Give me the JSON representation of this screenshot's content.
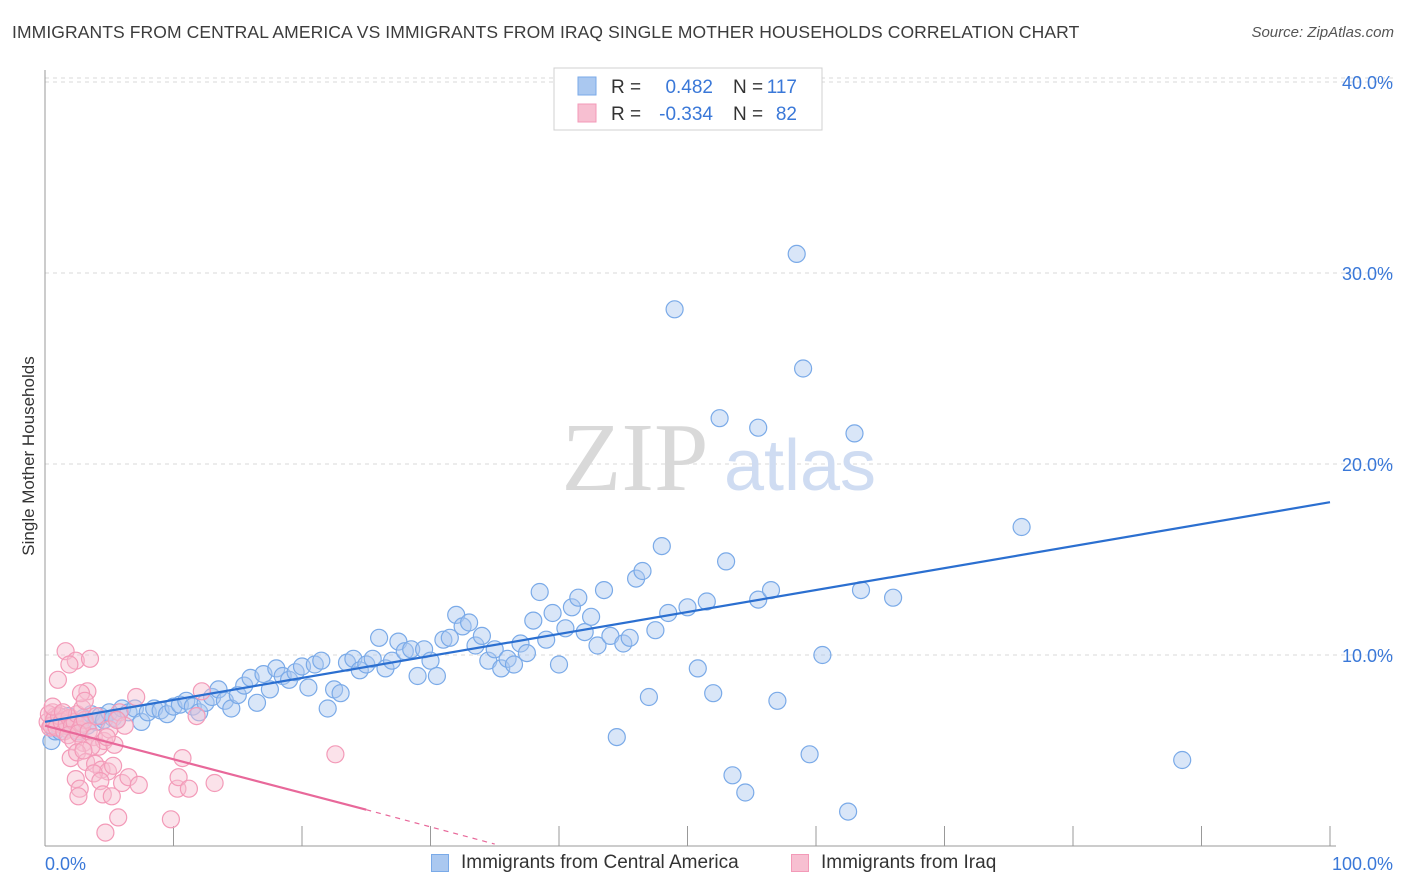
{
  "title": "IMMIGRANTS FROM CENTRAL AMERICA VS IMMIGRANTS FROM IRAQ SINGLE MOTHER HOUSEHOLDS CORRELATION CHART",
  "source": "Source: ZipAtlas.com",
  "watermark": {
    "zip": "ZIP",
    "atlas": "atlas"
  },
  "colors": {
    "blue": "#7aaae8",
    "blue_fill": "#aac8f0",
    "blue_line": "#2b6fd0",
    "pink": "#f39ab8",
    "pink_fill": "#f7bfd1",
    "pink_line": "#e8689a",
    "axis_label_blue": "#3a78d8",
    "grid": "#d8d8d8"
  },
  "stats_legend": [
    {
      "r_label": "R =",
      "r_value": "0.482",
      "n_label": "N =",
      "n_value": "117",
      "series": "blue"
    },
    {
      "r_label": "R =",
      "r_value": "-0.334",
      "n_label": "N =",
      "n_value": "82",
      "series": "pink"
    }
  ],
  "chart_data": {
    "type": "scatter",
    "title": "IMMIGRANTS FROM CENTRAL AMERICA VS IMMIGRANTS FROM IRAQ SINGLE MOTHER HOUSEHOLDS CORRELATION CHART",
    "xlabel": "",
    "ylabel": "Single Mother Households",
    "xlim": [
      0,
      100
    ],
    "ylim": [
      0,
      42
    ],
    "x_tick_labels": {
      "min": "0.0%",
      "max": "100.0%"
    },
    "y_ticks": [
      10,
      20,
      30,
      40
    ],
    "y_tick_labels": [
      "10.0%",
      "20.0%",
      "30.0%",
      "40.0%"
    ],
    "legend": [
      "Immigrants from Central America",
      "Immigrants from Iraq"
    ],
    "series": [
      {
        "name": "Immigrants from Central America",
        "color": "blue",
        "trend": {
          "x": [
            0,
            100
          ],
          "y": [
            6.5,
            18.0
          ],
          "dashed_from_x": null
        },
        "points": [
          [
            0.5,
            5.5
          ],
          [
            0.8,
            6.0
          ],
          [
            1.0,
            6.5
          ],
          [
            1.2,
            6.0
          ],
          [
            1.5,
            6.3
          ],
          [
            1.8,
            6.8
          ],
          [
            2.0,
            6.2
          ],
          [
            2.3,
            6.5
          ],
          [
            2.6,
            6.0
          ],
          [
            3.0,
            6.7
          ],
          [
            3.3,
            6.3
          ],
          [
            3.6,
            6.9
          ],
          [
            4.0,
            6.5
          ],
          [
            4.3,
            6.8
          ],
          [
            4.6,
            6.6
          ],
          [
            5.0,
            7.0
          ],
          [
            5.3,
            6.7
          ],
          [
            5.6,
            6.6
          ],
          [
            6.0,
            7.2
          ],
          [
            6.5,
            7.0
          ],
          [
            7.0,
            7.2
          ],
          [
            7.5,
            6.5
          ],
          [
            8.0,
            7.0
          ],
          [
            8.5,
            7.2
          ],
          [
            9.0,
            7.1
          ],
          [
            9.5,
            6.9
          ],
          [
            10.0,
            7.3
          ],
          [
            10.5,
            7.4
          ],
          [
            11.0,
            7.6
          ],
          [
            11.5,
            7.3
          ],
          [
            12.0,
            7.0
          ],
          [
            12.5,
            7.5
          ],
          [
            13.0,
            7.8
          ],
          [
            13.5,
            8.2
          ],
          [
            14.0,
            7.6
          ],
          [
            14.5,
            7.2
          ],
          [
            15.0,
            7.9
          ],
          [
            15.5,
            8.4
          ],
          [
            16.0,
            8.8
          ],
          [
            16.5,
            7.5
          ],
          [
            17.0,
            9.0
          ],
          [
            17.5,
            8.2
          ],
          [
            18.0,
            9.3
          ],
          [
            18.5,
            8.9
          ],
          [
            19.0,
            8.7
          ],
          [
            19.5,
            9.1
          ],
          [
            20.0,
            9.4
          ],
          [
            20.5,
            8.3
          ],
          [
            21.0,
            9.5
          ],
          [
            21.5,
            9.7
          ],
          [
            22.0,
            7.2
          ],
          [
            22.5,
            8.2
          ],
          [
            23.0,
            8.0
          ],
          [
            23.5,
            9.6
          ],
          [
            24.0,
            9.8
          ],
          [
            24.5,
            9.2
          ],
          [
            25.0,
            9.5
          ],
          [
            25.5,
            9.8
          ],
          [
            26.0,
            10.9
          ],
          [
            26.5,
            9.3
          ],
          [
            27.0,
            9.7
          ],
          [
            27.5,
            10.7
          ],
          [
            28.0,
            10.2
          ],
          [
            28.5,
            10.3
          ],
          [
            29.0,
            8.9
          ],
          [
            29.5,
            10.3
          ],
          [
            30.0,
            9.7
          ],
          [
            30.5,
            8.9
          ],
          [
            31.0,
            10.8
          ],
          [
            31.5,
            10.9
          ],
          [
            32.0,
            12.1
          ],
          [
            32.5,
            11.5
          ],
          [
            33.0,
            11.7
          ],
          [
            33.5,
            10.5
          ],
          [
            34.0,
            11.0
          ],
          [
            34.5,
            9.7
          ],
          [
            35.0,
            10.3
          ],
          [
            35.5,
            9.3
          ],
          [
            36.0,
            9.8
          ],
          [
            36.5,
            9.5
          ],
          [
            37.0,
            10.6
          ],
          [
            37.5,
            10.1
          ],
          [
            38.0,
            11.8
          ],
          [
            38.5,
            13.3
          ],
          [
            39.0,
            10.8
          ],
          [
            39.5,
            12.2
          ],
          [
            40.0,
            9.5
          ],
          [
            40.5,
            11.4
          ],
          [
            41.0,
            12.5
          ],
          [
            41.5,
            13.0
          ],
          [
            42.0,
            11.2
          ],
          [
            42.5,
            12.0
          ],
          [
            43.0,
            10.5
          ],
          [
            43.5,
            13.4
          ],
          [
            44.0,
            11.0
          ],
          [
            44.5,
            5.7
          ],
          [
            45.0,
            10.6
          ],
          [
            45.5,
            10.9
          ],
          [
            46.0,
            14.0
          ],
          [
            46.5,
            14.4
          ],
          [
            47.0,
            7.8
          ],
          [
            47.5,
            11.3
          ],
          [
            48.0,
            15.7
          ],
          [
            48.5,
            12.2
          ],
          [
            49.0,
            28.1
          ],
          [
            50.0,
            12.5
          ],
          [
            50.8,
            9.3
          ],
          [
            51.5,
            12.8
          ],
          [
            52.0,
            8.0
          ],
          [
            52.5,
            22.4
          ],
          [
            53.0,
            14.9
          ],
          [
            53.5,
            3.7
          ],
          [
            54.5,
            2.8
          ],
          [
            55.5,
            21.9
          ],
          [
            55.5,
            12.9
          ],
          [
            56.5,
            13.4
          ],
          [
            57.0,
            7.6
          ],
          [
            58.5,
            31.0
          ],
          [
            59.0,
            25.0
          ],
          [
            59.5,
            4.8
          ],
          [
            60.5,
            10.0
          ],
          [
            62.5,
            1.8
          ],
          [
            63.0,
            21.6
          ],
          [
            63.5,
            13.4
          ],
          [
            66.0,
            13.0
          ],
          [
            76.0,
            16.7
          ],
          [
            88.5,
            4.5
          ]
        ]
      },
      {
        "name": "Immigrants from Iraq",
        "color": "pink",
        "trend": {
          "x": [
            0,
            25,
            35
          ],
          "y": [
            6.3,
            1.9,
            0.1
          ],
          "dashed_from_x": 25
        },
        "points": [
          [
            0.2,
            6.5
          ],
          [
            0.4,
            6.2
          ],
          [
            0.6,
            7.0
          ],
          [
            0.8,
            6.8
          ],
          [
            1.0,
            6.4
          ],
          [
            1.2,
            6.9
          ],
          [
            1.4,
            6.3
          ],
          [
            1.6,
            6.6
          ],
          [
            1.8,
            6.1
          ],
          [
            2.0,
            6.7
          ],
          [
            0.3,
            6.9
          ],
          [
            0.5,
            6.3
          ],
          [
            0.7,
            6.6
          ],
          [
            0.9,
            6.2
          ],
          [
            1.1,
            6.8
          ],
          [
            1.3,
            6.5
          ],
          [
            1.5,
            6.0
          ],
          [
            1.7,
            6.4
          ],
          [
            1.9,
            6.7
          ],
          [
            2.1,
            6.3
          ],
          [
            2.3,
            6.5
          ],
          [
            2.5,
            6.9
          ],
          [
            2.7,
            6.1
          ],
          [
            2.9,
            6.4
          ],
          [
            3.1,
            6.6
          ],
          [
            0.6,
            7.3
          ],
          [
            1.0,
            8.7
          ],
          [
            1.4,
            7.0
          ],
          [
            1.8,
            5.8
          ],
          [
            2.2,
            5.5
          ],
          [
            2.6,
            5.9
          ],
          [
            3.0,
            5.4
          ],
          [
            3.4,
            6.0
          ],
          [
            3.8,
            5.7
          ],
          [
            4.2,
            5.2
          ],
          [
            4.6,
            5.5
          ],
          [
            5.0,
            6.1
          ],
          [
            5.4,
            5.3
          ],
          [
            5.8,
            7.0
          ],
          [
            6.2,
            6.3
          ],
          [
            1.6,
            10.2
          ],
          [
            2.4,
            9.7
          ],
          [
            1.9,
            9.5
          ],
          [
            3.5,
            9.8
          ],
          [
            2.9,
            7.2
          ],
          [
            3.3,
            8.1
          ],
          [
            2.8,
            8.0
          ],
          [
            3.1,
            7.6
          ],
          [
            3.6,
            5.2
          ],
          [
            4.0,
            6.8
          ],
          [
            2.0,
            4.6
          ],
          [
            2.5,
            4.9
          ],
          [
            3.2,
            4.4
          ],
          [
            3.9,
            4.3
          ],
          [
            4.4,
            4.0
          ],
          [
            4.9,
            3.9
          ],
          [
            3.8,
            3.8
          ],
          [
            2.4,
            3.5
          ],
          [
            2.7,
            3.0
          ],
          [
            2.6,
            2.6
          ],
          [
            4.3,
            3.4
          ],
          [
            4.5,
            2.7
          ],
          [
            5.2,
            2.6
          ],
          [
            6.0,
            3.3
          ],
          [
            5.7,
            1.5
          ],
          [
            4.7,
            0.7
          ],
          [
            5.3,
            4.2
          ],
          [
            4.8,
            5.7
          ],
          [
            6.5,
            3.6
          ],
          [
            7.3,
            3.2
          ],
          [
            7.1,
            7.8
          ],
          [
            9.8,
            1.4
          ],
          [
            10.3,
            3.0
          ],
          [
            10.4,
            3.6
          ],
          [
            10.7,
            4.6
          ],
          [
            11.2,
            3.0
          ],
          [
            11.8,
            6.8
          ],
          [
            12.2,
            8.1
          ],
          [
            13.2,
            3.3
          ],
          [
            22.6,
            4.8
          ],
          [
            3.0,
            5.0
          ],
          [
            5.6,
            6.6
          ]
        ]
      }
    ]
  }
}
